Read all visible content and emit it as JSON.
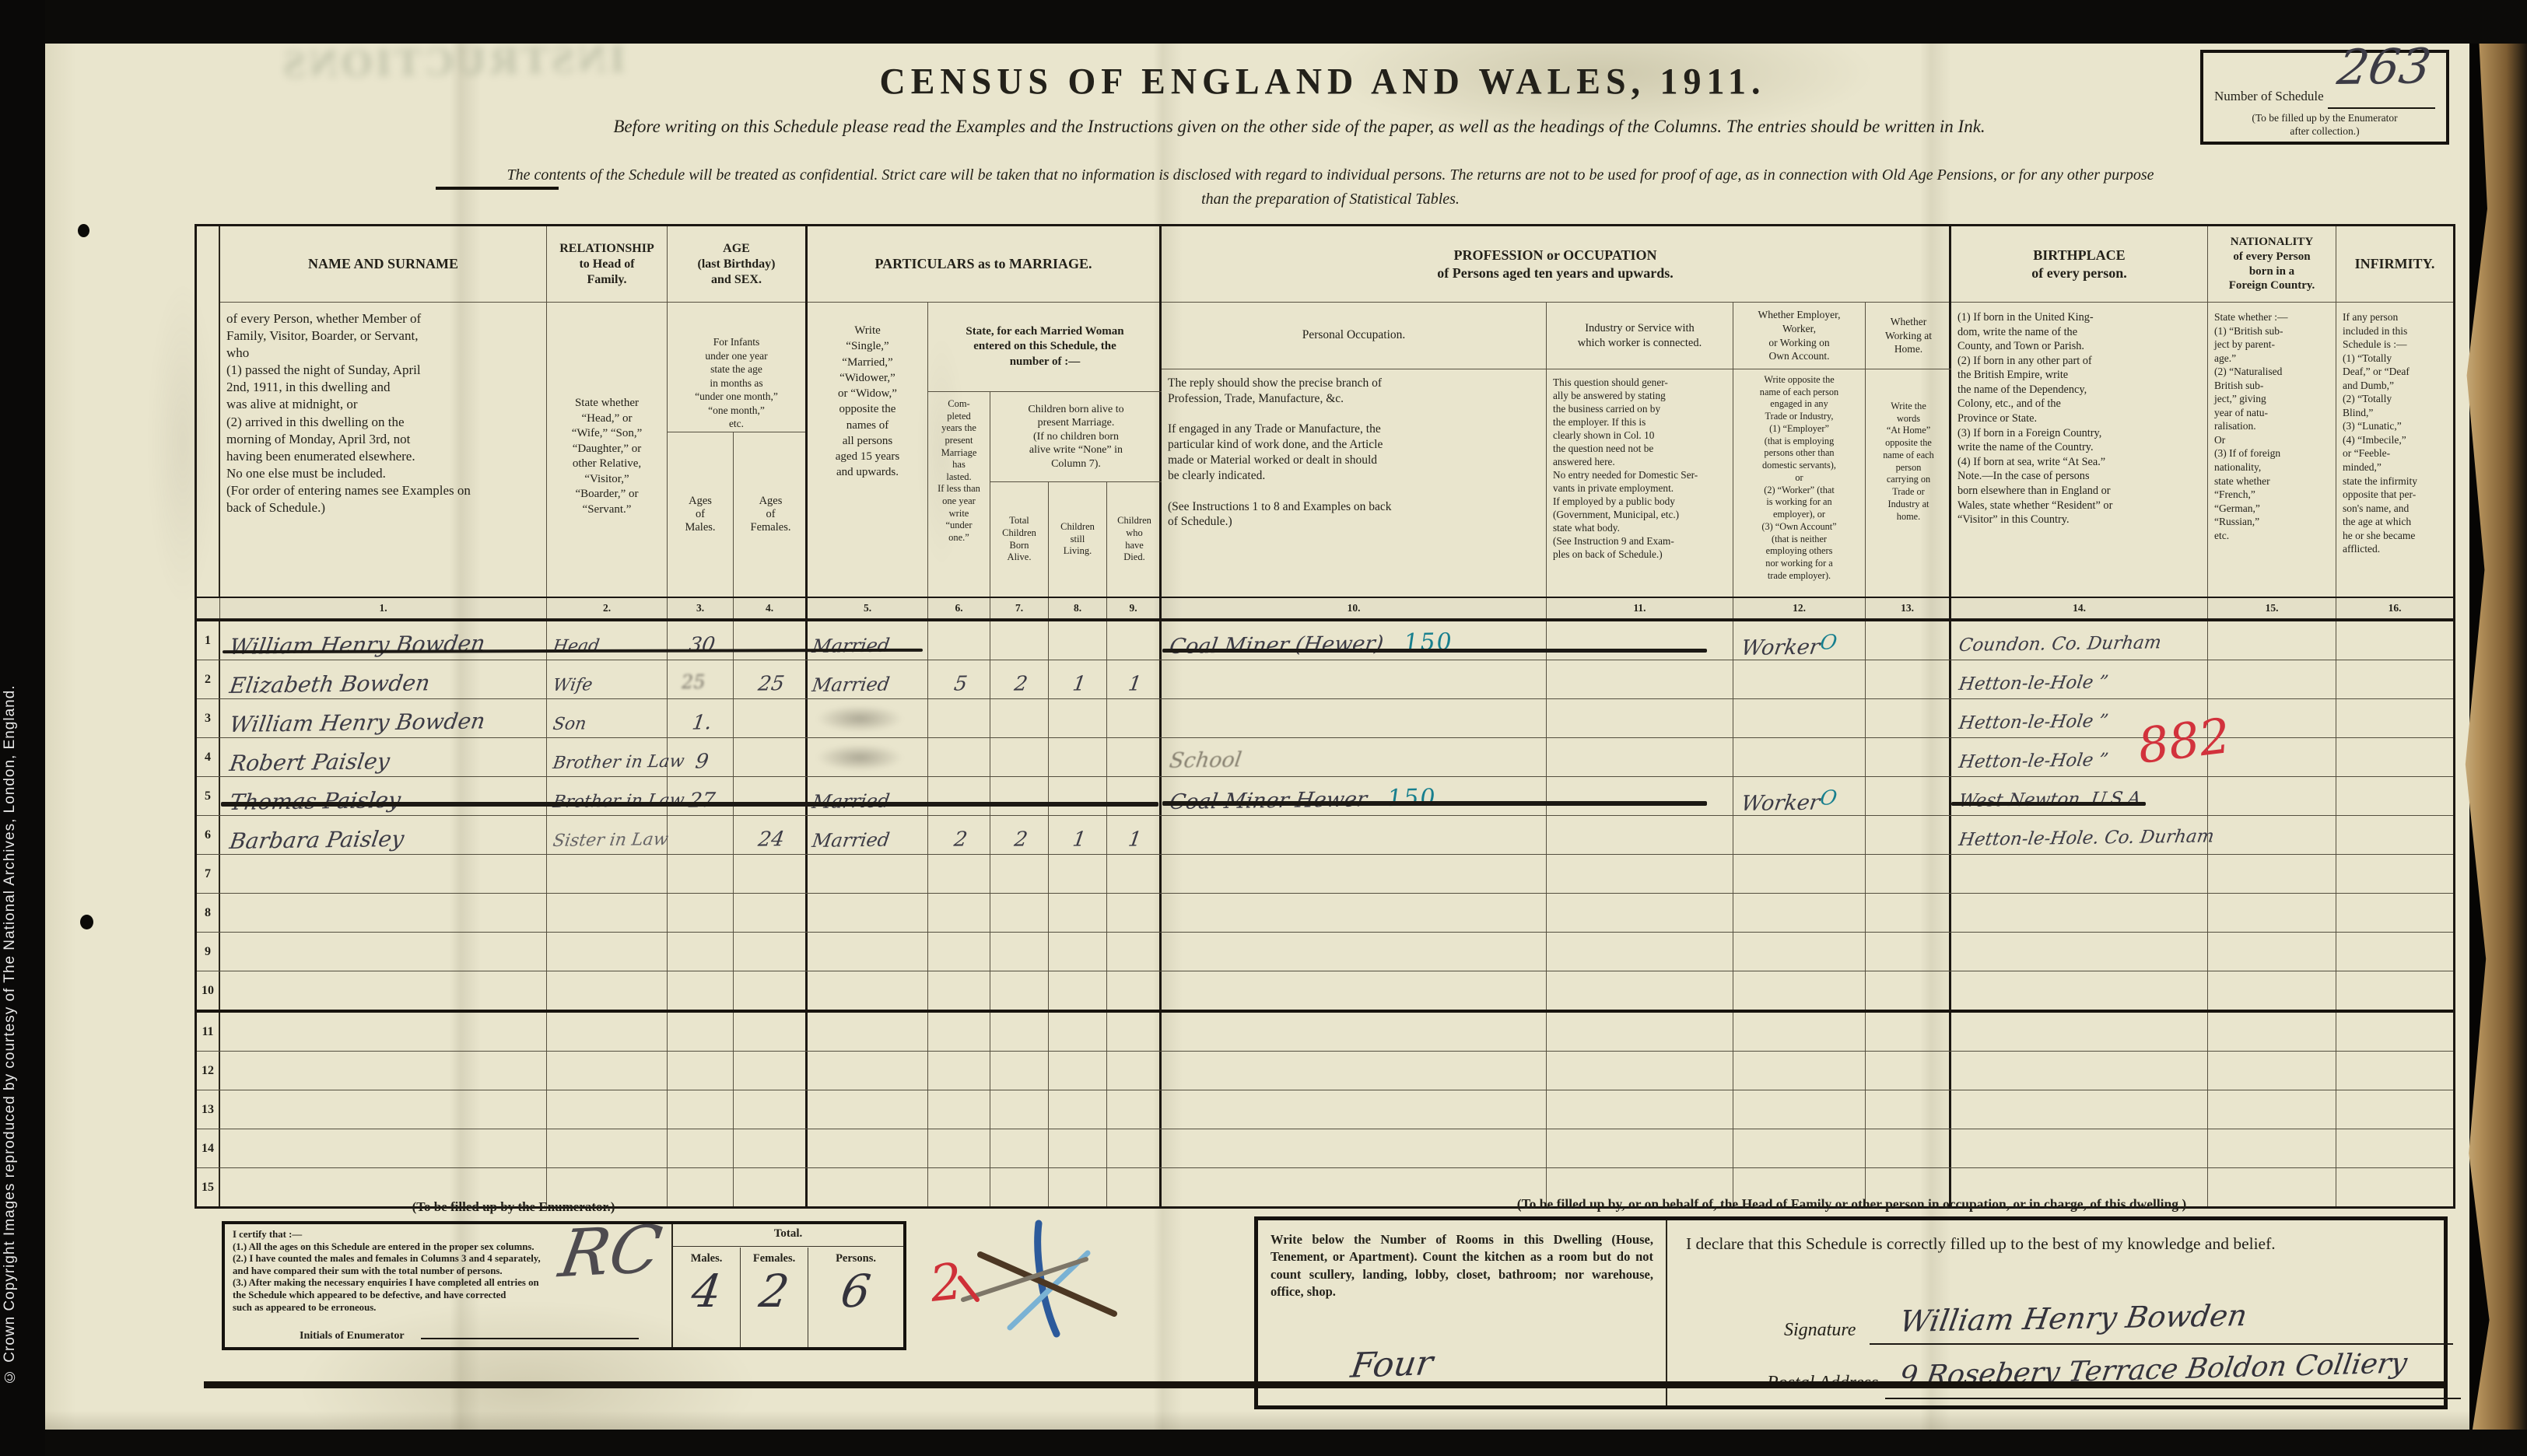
{
  "copyright": "© Crown Copyright Images reproduced by courtesy of The National Archives, London, England.",
  "title": "CENSUS  OF  ENGLAND  AND  WALES,  1911.",
  "subtitle": "Before writing on this Schedule please read the Examples and the Instructions given on the other side of the paper, as well as the headings of the Columns.  The entries should be written in Ink.",
  "confidential": "The contents of the Schedule will be treated as confidential.  Strict care will be taken that no information is disclosed with regard to individual persons.  The returns are not to be used for proof of age, as in connection with Old Age Pensions, or for any other purpose\nthan the preparation of Statistical Tables.",
  "schedule_box": {
    "label": "Number of Schedule",
    "value": "263",
    "note": "(To be filled up by the Enumerator\nafter collection.)"
  },
  "header": {
    "name_top": "NAME  AND  SURNAME",
    "name_body": "of every Person, whether Member of\n   Family, Visitor, Boarder, or Servant,\n   who\n(1) passed the night of Sunday, April\n      2nd, 1911, in this dwelling and\n      was alive at midnight, or\n(2) arrived in this dwelling on the\n      morning of Monday, April 3rd, not\n      having been enumerated elsewhere.\nNo one else must be included.\n(For order of entering names see Examples on\nback of Schedule.)",
    "rel_top": "RELATIONSHIP\nto Head of\nFamily.",
    "rel_body": "State whether\n“Head,” or\n“Wife,” “Son,”\n“Daughter,” or\nother Relative,\n“Visitor,”\n“Boarder,” or\n“Servant.”",
    "age_top": "AGE\n(last Birthday)\nand SEX.",
    "age_infants": "For Infants\nunder one year\nstate the age\nin months as\n“under one month,”\n“one month,”\netc.",
    "age_males": "Ages\nof\nMales.",
    "age_females": "Ages\nof\nFemales.",
    "marriage_top": "PARTICULARS  as  to  MARRIAGE.",
    "m_col5": "Write\n“Single,”\n“Married,”\n“Widower,”\nor “Widow,”\nopposite the\nnames of\nall persons\naged 15 years\nand upwards.",
    "m_band": "State, for each Married Woman\nentered on this Schedule, the\nnumber of :—",
    "m_col6": "Com-\npleted\nyears the\npresent\nMarriage\nhas\nlasted.\nIf less than\none year\nwrite\n“under\none.”",
    "m_children": "Children born alive to\npresent Marriage.\n(If no children born\nalive write “None” in\nColumn 7).",
    "m_born": "Total\nChildren\nBorn\nAlive.",
    "m_living": "Children\nstill\nLiving.",
    "m_died": "Children\nwho\nhave\nDied.",
    "occ_top": "PROFESSION or OCCUPATION\nof Persons aged ten years and upwards.",
    "occ10_head": "Personal Occupation.",
    "occ10_body": "The reply should show the precise branch of\n   Profession, Trade, Manufacture, &c.\n\nIf engaged in any Trade or Manufacture, the\n   particular kind of work done, and the Article\n   made or Material worked or dealt in should\n   be clearly indicated.\n\n(See Instructions 1 to 8 and Examples on back\n   of Schedule.)",
    "occ11_head": "Industry or Service with\nwhich worker is connected.",
    "occ11_body": "This question should gener-\nally be answered by stating\nthe business carried on by\nthe employer.  If this is\nclearly shown in Col. 10\nthe question need not be\nanswered here.\nNo entry needed for Domestic Ser-\nvants in private employment.\nIf employed by a public body\n(Government, Municipal, etc.)\nstate what body.\n(See Instruction 9 and Exam-\nples on back of Schedule.)",
    "occ12_head": "Whether Employer,\nWorker,\nor Working on\nOwn Account.",
    "occ12_body": "Write opposite the\nname of each person\nengaged in any\nTrade or Industry,\n(1) “Employer”\n(that is employing\npersons other than\ndomestic servants),\nor\n(2) “Worker” (that\nis working for an\nemployer), or\n(3) “Own Account”\n(that is neither\nemploying others\nnor working for a\ntrade employer).",
    "occ13_head": "Whether\nWorking at\nHome.",
    "occ13_body": "Write the\nwords\n“At Home”\nopposite the\nname of each\nperson\ncarrying on\nTrade or\nIndustry at\nhome.",
    "birth_head": "BIRTHPLACE\nof every person.",
    "birth_body": "(1) If born in the United King-\n      dom, write the name of the\n      County, and Town or Parish.\n(2) If born in any other part of\n      the British Empire, write\n      the name of the Dependency,\n      Colony, etc., and of the\n      Province or State.\n(3) If born in a Foreign Country,\n      write the name of the Country.\n(4) If born at sea, write “At Sea.”\nNote.—In the case of persons\nborn elsewhere than in England or\nWales, state whether “Resident” or\n“Visitor” in this Country.",
    "nat_head": "NATIONALITY\nof every Person\nborn in a\nForeign Country.",
    "nat_body": "State whether :—\n(1) “British sub-\nject by parent-\nage.”\n(2) “Naturalised\nBritish   sub-\nject,”   giving\nyear of natu-\nralisation.\nOr\n(3) If of foreign\nnationality,\nstate whether\n“French,”\n“German,”\n“Russian,”\netc.",
    "inf_head": "INFIRMITY.",
    "inf_body": "If   any   person\nincluded in this\nSchedule is :—\n(1) “Totally\nDeaf,” or “Deaf\nand Dumb,”\n(2) “Totally\nBlind,”\n(3) “Lunatic,”\n(4) “Imbecile,”\nor  “Feeble-\nminded,”\nstate the infirmity\nopposite that per-\nson's name, and\nthe age at which\nhe or she became\nafflicted."
  },
  "column_numbers": [
    "1.",
    "2.",
    "3.",
    "4.",
    "5.",
    "6.",
    "7.",
    "8.",
    "9.",
    "10.",
    "11.",
    "12.",
    "13.",
    "14.",
    "15.",
    "16."
  ],
  "rows": [
    {
      "n": "1",
      "name": "William Henry Bowden",
      "rel": "Head",
      "age_m": "30",
      "age_f": "",
      "status": "Married",
      "years": "",
      "born": "",
      "living": "",
      "died": "",
      "occ": "Coal Miner (Hewer)",
      "occ_code": "150",
      "industry": "",
      "emp": "Worker",
      "emp_mark": "O",
      "home": "",
      "birth": "Coundon. Co. Durham",
      "nat": "",
      "inf": ""
    },
    {
      "n": "2",
      "name": "Elizabeth Bowden",
      "rel": "Wife",
      "age_m": "",
      "age_m_smudge": "25",
      "age_f": "25",
      "status": "Married",
      "years": "5",
      "born": "2",
      "living": "1",
      "died": "1",
      "occ": "",
      "industry": "",
      "emp": "",
      "home": "",
      "birth": "Hetton-le-Hole      ”",
      "nat": "",
      "inf": ""
    },
    {
      "n": "3",
      "name": "William Henry Bowden",
      "rel": "Son",
      "age_m": "1.",
      "age_f": "",
      "status": "",
      "status_smudge": true,
      "years": "",
      "born": "",
      "living": "",
      "died": "",
      "occ": "",
      "industry": "",
      "emp": "",
      "home": "",
      "birth": "Hetton-le-Hole      ”",
      "nat": "",
      "inf": ""
    },
    {
      "n": "4",
      "name": "Robert Paisley",
      "rel": "Brother in Law",
      "age_m": "9",
      "age_f": "",
      "status": "",
      "status_smudge": true,
      "years": "",
      "born": "",
      "living": "",
      "died": "",
      "occ": "School",
      "occ_style": "pencil",
      "industry": "",
      "emp": "",
      "home": "",
      "birth": "Hetton-le-Hole      ”",
      "nat": "",
      "inf": ""
    },
    {
      "n": "5",
      "name": "Thomas Paisley",
      "rel": "Brother in Law",
      "age_m": "27",
      "age_f": "",
      "status": "Married",
      "years": "",
      "born": "",
      "living": "",
      "died": "",
      "occ": "Coal Miner Hewer",
      "occ_code": "150",
      "industry": "",
      "emp": "Worker",
      "emp_mark": "O",
      "home": "",
      "birth": "West Newton. U.S.A.",
      "nat": "",
      "inf": ""
    },
    {
      "n": "6",
      "name": "Barbara Paisley",
      "rel": "Sister in Law",
      "rel_style": "faint",
      "age_m": "",
      "age_f": "24",
      "status": "Married",
      "years": "2",
      "born": "2",
      "living": "1",
      "died": "1",
      "occ": "",
      "industry": "",
      "emp": "",
      "home": "",
      "birth": "Hetton-le-Hole. Co. Durham",
      "nat": "",
      "inf": ""
    },
    {
      "n": "7"
    },
    {
      "n": "8"
    },
    {
      "n": "9"
    },
    {
      "n": "10"
    },
    {
      "n": "11"
    },
    {
      "n": "12"
    },
    {
      "n": "13"
    },
    {
      "n": "14"
    },
    {
      "n": "15"
    }
  ],
  "marks": {
    "red_nationality_code": "882",
    "red_rooms_check": "2",
    "enumerator_initials": "RC"
  },
  "enumerator": {
    "heading": "(To be filled up by the Enumerator.)",
    "certify": "I certify that :—\n(1.) All the ages on this Schedule are entered in the proper sex columns.\n(2.) I have counted the males and females in Columns 3 and 4 separately,\n        and have compared their sum with the total number of persons.\n(3.) After making the necessary enquiries I have completed all entries on\n        the Schedule which appeared to be defective, and have corrected\n        such as appeared to be erroneous.",
    "initials_label": "Initials of Enumerator",
    "total_label": "Total.",
    "males_label": "Males.",
    "females_label": "Females.",
    "persons_label": "Persons.",
    "males_value": "4",
    "females_value": "2",
    "persons_value": "6"
  },
  "dwelling": {
    "heading": "(To be filled up by, or on behalf of, the Head of Family or other person in occupation, or in charge, of this dwelling.)",
    "rooms_text": "Write below the Number of Rooms in this Dwelling (House, Tenement, or Apartment).  Count the kitchen as a room but do not count scullery, landing, lobby, closet, bathroom; nor warehouse, office, shop.",
    "rooms_value": "Four",
    "declaration": "I declare that this Schedule is correctly filled up to the best of my knowledge and belief.",
    "signature_label": "Signature",
    "signature_value": "William Henry Bowden",
    "address_label": "Postal Address",
    "address_value": "9 Rosebery Terrace  Boldon Colliery"
  }
}
